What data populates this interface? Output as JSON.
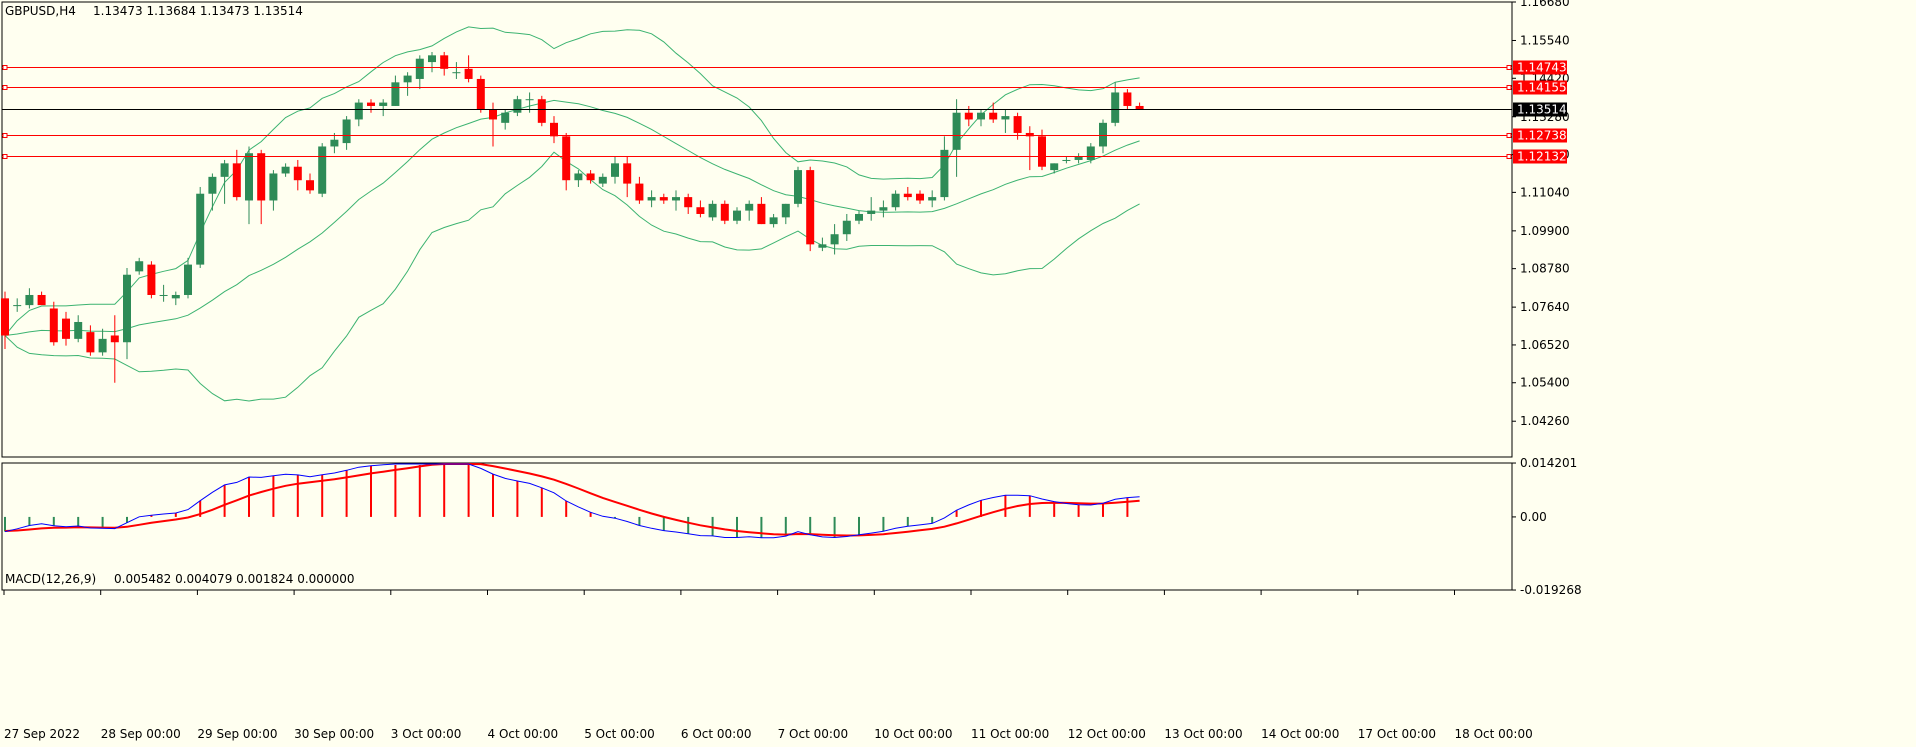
{
  "header": {
    "symbol": "GBPUSD,H4",
    "ohlc": "1.13473 1.13684 1.13473 1.13514"
  },
  "macd_header": {
    "label": "MACD(12,26,9)",
    "values": "0.005482 0.004079 0.001824 0.000000"
  },
  "colors": {
    "background": "#fffff0",
    "bull_candle": "#2e8b57",
    "bear_candle": "#ff0000",
    "bollinger": "#3cb371",
    "level_line": "#ff0000",
    "current_line": "#000000",
    "macd_line": "#0000ff",
    "signal_line": "#ff0000"
  },
  "chart_data": [
    {
      "type": "candlestick",
      "symbol": "GBPUSD",
      "timeframe": "H4",
      "ylim": [
        1.032,
        1.1668
      ],
      "price_ticks": [
        "1.16680",
        "1.15540",
        "1.14420",
        "1.13280",
        "1.12160",
        "1.11040",
        "1.09900",
        "1.08780",
        "1.07640",
        "1.06520",
        "1.05400",
        "1.04260"
      ],
      "time_labels": [
        "27 Sep 2022",
        "28 Sep 00:00",
        "29 Sep 00:00",
        "30 Sep 00:00",
        "3 Oct 00:00",
        "4 Oct 00:00",
        "5 Oct 00:00",
        "6 Oct 00:00",
        "7 Oct 00:00",
        "10 Oct 00:00",
        "11 Oct 00:00",
        "12 Oct 00:00",
        "13 Oct 00:00",
        "14 Oct 00:00",
        "17 Oct 00:00",
        "18 Oct 00:00"
      ],
      "levels": [
        {
          "price": 1.14743,
          "label": "1.14743"
        },
        {
          "price": 1.14155,
          "label": "1.14155"
        },
        {
          "price": 1.12738,
          "label": "1.12738"
        },
        {
          "price": 1.12132,
          "label": "1.12132"
        }
      ],
      "current_price": {
        "price": 1.13514,
        "label": "1.13514"
      },
      "candles": [
        {
          "o": 1.079,
          "h": 1.081,
          "l": 1.064,
          "c": 1.068
        },
        {
          "o": 1.077,
          "h": 1.079,
          "l": 1.075,
          "c": 1.077
        },
        {
          "o": 1.077,
          "h": 1.082,
          "l": 1.076,
          "c": 1.08
        },
        {
          "o": 1.08,
          "h": 1.081,
          "l": 1.078,
          "c": 1.077
        },
        {
          "o": 1.076,
          "h": 1.078,
          "l": 1.065,
          "c": 1.066
        },
        {
          "o": 1.073,
          "h": 1.075,
          "l": 1.065,
          "c": 1.067
        },
        {
          "o": 1.067,
          "h": 1.074,
          "l": 1.066,
          "c": 1.072
        },
        {
          "o": 1.069,
          "h": 1.071,
          "l": 1.062,
          "c": 1.063
        },
        {
          "o": 1.063,
          "h": 1.07,
          "l": 1.062,
          "c": 1.067
        },
        {
          "o": 1.068,
          "h": 1.074,
          "l": 1.054,
          "c": 1.066
        },
        {
          "o": 1.066,
          "h": 1.088,
          "l": 1.061,
          "c": 1.086
        },
        {
          "o": 1.087,
          "h": 1.091,
          "l": 1.086,
          "c": 1.09
        },
        {
          "o": 1.089,
          "h": 1.09,
          "l": 1.079,
          "c": 1.08
        },
        {
          "o": 1.08,
          "h": 1.083,
          "l": 1.078,
          "c": 1.08
        },
        {
          "o": 1.079,
          "h": 1.081,
          "l": 1.077,
          "c": 1.08
        },
        {
          "o": 1.08,
          "h": 1.091,
          "l": 1.079,
          "c": 1.089
        },
        {
          "o": 1.089,
          "h": 1.112,
          "l": 1.088,
          "c": 1.11
        },
        {
          "o": 1.11,
          "h": 1.116,
          "l": 1.105,
          "c": 1.115
        },
        {
          "o": 1.115,
          "h": 1.12,
          "l": 1.107,
          "c": 1.119
        },
        {
          "o": 1.119,
          "h": 1.123,
          "l": 1.108,
          "c": 1.109
        },
        {
          "o": 1.108,
          "h": 1.124,
          "l": 1.101,
          "c": 1.122
        },
        {
          "o": 1.122,
          "h": 1.123,
          "l": 1.101,
          "c": 1.108
        },
        {
          "o": 1.108,
          "h": 1.117,
          "l": 1.105,
          "c": 1.116
        },
        {
          "o": 1.116,
          "h": 1.119,
          "l": 1.115,
          "c": 1.118
        },
        {
          "o": 1.118,
          "h": 1.12,
          "l": 1.111,
          "c": 1.114
        },
        {
          "o": 1.114,
          "h": 1.116,
          "l": 1.11,
          "c": 1.111
        },
        {
          "o": 1.11,
          "h": 1.125,
          "l": 1.109,
          "c": 1.124
        },
        {
          "o": 1.124,
          "h": 1.128,
          "l": 1.122,
          "c": 1.126
        },
        {
          "o": 1.125,
          "h": 1.133,
          "l": 1.123,
          "c": 1.132
        },
        {
          "o": 1.132,
          "h": 1.138,
          "l": 1.13,
          "c": 1.137
        },
        {
          "o": 1.137,
          "h": 1.138,
          "l": 1.134,
          "c": 1.136
        },
        {
          "o": 1.136,
          "h": 1.138,
          "l": 1.133,
          "c": 1.137
        },
        {
          "o": 1.136,
          "h": 1.145,
          "l": 1.136,
          "c": 1.143
        },
        {
          "o": 1.143,
          "h": 1.146,
          "l": 1.139,
          "c": 1.145
        },
        {
          "o": 1.144,
          "h": 1.151,
          "l": 1.141,
          "c": 1.15
        },
        {
          "o": 1.149,
          "h": 1.152,
          "l": 1.146,
          "c": 1.151
        },
        {
          "o": 1.151,
          "h": 1.152,
          "l": 1.145,
          "c": 1.147
        },
        {
          "o": 1.146,
          "h": 1.149,
          "l": 1.144,
          "c": 1.146
        },
        {
          "o": 1.147,
          "h": 1.151,
          "l": 1.143,
          "c": 1.144
        },
        {
          "o": 1.144,
          "h": 1.145,
          "l": 1.134,
          "c": 1.135
        },
        {
          "o": 1.135,
          "h": 1.137,
          "l": 1.124,
          "c": 1.132
        },
        {
          "o": 1.131,
          "h": 1.135,
          "l": 1.129,
          "c": 1.134
        },
        {
          "o": 1.134,
          "h": 1.139,
          "l": 1.133,
          "c": 1.138
        },
        {
          "o": 1.138,
          "h": 1.14,
          "l": 1.134,
          "c": 1.138
        },
        {
          "o": 1.138,
          "h": 1.139,
          "l": 1.13,
          "c": 1.131
        },
        {
          "o": 1.131,
          "h": 1.133,
          "l": 1.125,
          "c": 1.127
        },
        {
          "o": 1.127,
          "h": 1.128,
          "l": 1.111,
          "c": 1.114
        },
        {
          "o": 1.114,
          "h": 1.117,
          "l": 1.112,
          "c": 1.116
        },
        {
          "o": 1.116,
          "h": 1.117,
          "l": 1.113,
          "c": 1.114
        },
        {
          "o": 1.113,
          "h": 1.116,
          "l": 1.112,
          "c": 1.115
        },
        {
          "o": 1.115,
          "h": 1.121,
          "l": 1.113,
          "c": 1.119
        },
        {
          "o": 1.119,
          "h": 1.121,
          "l": 1.109,
          "c": 1.113
        },
        {
          "o": 1.113,
          "h": 1.115,
          "l": 1.107,
          "c": 1.108
        },
        {
          "o": 1.108,
          "h": 1.111,
          "l": 1.106,
          "c": 1.109
        },
        {
          "o": 1.109,
          "h": 1.11,
          "l": 1.107,
          "c": 1.108
        },
        {
          "o": 1.108,
          "h": 1.111,
          "l": 1.105,
          "c": 1.109
        },
        {
          "o": 1.109,
          "h": 1.11,
          "l": 1.104,
          "c": 1.106
        },
        {
          "o": 1.106,
          "h": 1.108,
          "l": 1.103,
          "c": 1.104
        },
        {
          "o": 1.103,
          "h": 1.108,
          "l": 1.102,
          "c": 1.107
        },
        {
          "o": 1.107,
          "h": 1.108,
          "l": 1.101,
          "c": 1.102
        },
        {
          "o": 1.102,
          "h": 1.106,
          "l": 1.101,
          "c": 1.105
        },
        {
          "o": 1.105,
          "h": 1.108,
          "l": 1.102,
          "c": 1.107
        },
        {
          "o": 1.107,
          "h": 1.109,
          "l": 1.101,
          "c": 1.101
        },
        {
          "o": 1.101,
          "h": 1.104,
          "l": 1.1,
          "c": 1.103
        },
        {
          "o": 1.103,
          "h": 1.107,
          "l": 1.101,
          "c": 1.107
        },
        {
          "o": 1.107,
          "h": 1.118,
          "l": 1.106,
          "c": 1.117
        },
        {
          "o": 1.117,
          "h": 1.118,
          "l": 1.093,
          "c": 1.095
        },
        {
          "o": 1.094,
          "h": 1.097,
          "l": 1.093,
          "c": 1.095
        },
        {
          "o": 1.095,
          "h": 1.101,
          "l": 1.092,
          "c": 1.098
        },
        {
          "o": 1.098,
          "h": 1.104,
          "l": 1.096,
          "c": 1.102
        },
        {
          "o": 1.102,
          "h": 1.105,
          "l": 1.101,
          "c": 1.104
        },
        {
          "o": 1.104,
          "h": 1.109,
          "l": 1.102,
          "c": 1.105
        },
        {
          "o": 1.105,
          "h": 1.108,
          "l": 1.103,
          "c": 1.106
        },
        {
          "o": 1.106,
          "h": 1.111,
          "l": 1.105,
          "c": 1.11
        },
        {
          "o": 1.11,
          "h": 1.112,
          "l": 1.108,
          "c": 1.109
        },
        {
          "o": 1.11,
          "h": 1.111,
          "l": 1.107,
          "c": 1.108
        },
        {
          "o": 1.108,
          "h": 1.111,
          "l": 1.106,
          "c": 1.109
        },
        {
          "o": 1.109,
          "h": 1.127,
          "l": 1.108,
          "c": 1.123
        },
        {
          "o": 1.123,
          "h": 1.138,
          "l": 1.115,
          "c": 1.134
        },
        {
          "o": 1.134,
          "h": 1.136,
          "l": 1.13,
          "c": 1.132
        },
        {
          "o": 1.132,
          "h": 1.135,
          "l": 1.13,
          "c": 1.134
        },
        {
          "o": 1.134,
          "h": 1.137,
          "l": 1.131,
          "c": 1.132
        },
        {
          "o": 1.132,
          "h": 1.135,
          "l": 1.128,
          "c": 1.133
        },
        {
          "o": 1.133,
          "h": 1.134,
          "l": 1.126,
          "c": 1.128
        },
        {
          "o": 1.128,
          "h": 1.13,
          "l": 1.117,
          "c": 1.127
        },
        {
          "o": 1.127,
          "h": 1.129,
          "l": 1.117,
          "c": 1.118
        },
        {
          "o": 1.117,
          "h": 1.119,
          "l": 1.116,
          "c": 1.119
        },
        {
          "o": 1.12,
          "h": 1.121,
          "l": 1.119,
          "c": 1.12
        },
        {
          "o": 1.12,
          "h": 1.122,
          "l": 1.119,
          "c": 1.121
        },
        {
          "o": 1.12,
          "h": 1.125,
          "l": 1.119,
          "c": 1.124
        },
        {
          "o": 1.124,
          "h": 1.132,
          "l": 1.122,
          "c": 1.131
        },
        {
          "o": 1.131,
          "h": 1.143,
          "l": 1.13,
          "c": 1.14
        },
        {
          "o": 1.14,
          "h": 1.141,
          "l": 1.135,
          "c": 1.136
        },
        {
          "o": 1.136,
          "h": 1.137,
          "l": 1.135,
          "c": 1.135
        }
      ],
      "bollinger": {
        "period": 20,
        "std_dev": 2
      }
    },
    {
      "type": "macd",
      "label": "MACD(12,26,9)",
      "ylim": [
        -0.01926,
        0.01421
      ],
      "ticks": [
        "0.014201",
        "0.00",
        "-0.019268"
      ],
      "macd": {
        "fast": 12,
        "slow": 26,
        "signal": 9
      }
    }
  ]
}
